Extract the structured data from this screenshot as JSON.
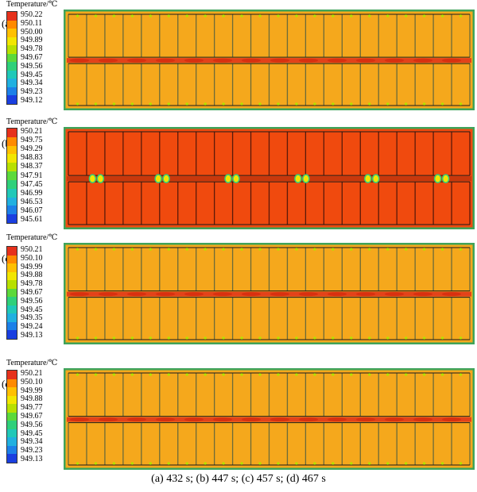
{
  "legend_title": "Temperature/℃",
  "caption": "(a) 432 s; (b) 447 s; (c) 457 s; (d) 467 s",
  "colors": {
    "field_orange": "#f5a81c",
    "field_red": "#f04a0e",
    "divider_red": "#e3421a",
    "border_green": "#3fa35a",
    "gridline": "#1a1a1a"
  },
  "colorbar_colors": [
    "#e6311c",
    "#ff8a00",
    "#ffc000",
    "#f2e600",
    "#b8e000",
    "#5cd93b",
    "#2fd07a",
    "#20c8b8",
    "#20b0e0",
    "#1c80e8",
    "#1a3fe0"
  ],
  "panels": [
    {
      "label": "(a)",
      "state": "uniform-orange",
      "ticks": [
        "950.22",
        "950.11",
        "950.00",
        "949.89",
        "949.78",
        "949.67",
        "949.56",
        "949.45",
        "949.34",
        "949.23",
        "949.12"
      ]
    },
    {
      "label": "(b)",
      "state": "hot-red",
      "ticks": [
        "950.21",
        "949.75",
        "949.29",
        "948.83",
        "948.37",
        "947.91",
        "947.45",
        "946.99",
        "946.53",
        "946.07",
        "945.61"
      ]
    },
    {
      "label": "(c)",
      "state": "uniform-orange",
      "ticks": [
        "950.21",
        "950.10",
        "949.99",
        "949.88",
        "949.78",
        "949.67",
        "949.56",
        "949.45",
        "949.35",
        "949.24",
        "949.13"
      ]
    },
    {
      "label": "(d)",
      "state": "uniform-orange",
      "ticks": [
        "950.21",
        "950.10",
        "949.99",
        "949.88",
        "949.77",
        "949.67",
        "949.56",
        "949.45",
        "949.34",
        "949.23",
        "949.13"
      ]
    }
  ]
}
